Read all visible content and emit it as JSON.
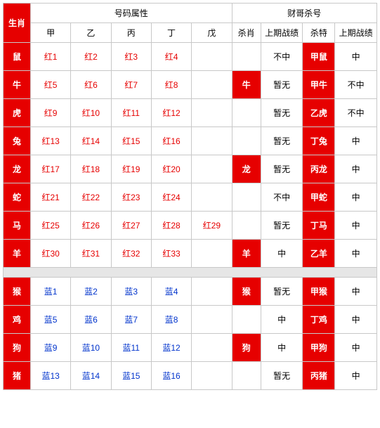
{
  "colors": {
    "red_bg": "#e60000",
    "red_text": "#e60000",
    "blue_text": "#0033cc",
    "black_text": "#000000",
    "border": "#c8c8c8",
    "gap_bg": "#e6e6e6",
    "white": "#ffffff"
  },
  "header": {
    "zodiac": "生肖",
    "num_group": "号码属性",
    "caige_group": "财哥杀号",
    "stems": [
      "甲",
      "乙",
      "丙",
      "丁",
      "戊"
    ],
    "sha_xiao": "杀肖",
    "last1": "上期战绩",
    "sha_te": "杀特",
    "last2": "上期战绩"
  },
  "rows": [
    {
      "zodiac": "鼠",
      "color": "red",
      "nums": [
        "红1",
        "红2",
        "红3",
        "红4",
        ""
      ],
      "sx": "",
      "sx_hl": false,
      "l1": "不中",
      "st": "甲鼠",
      "st_hl": true,
      "l2": "中"
    },
    {
      "zodiac": "牛",
      "color": "red",
      "nums": [
        "红5",
        "红6",
        "红7",
        "红8",
        ""
      ],
      "sx": "牛",
      "sx_hl": true,
      "l1": "暂无",
      "st": "甲牛",
      "st_hl": true,
      "l2": "不中"
    },
    {
      "zodiac": "虎",
      "color": "red",
      "nums": [
        "红9",
        "红10",
        "红11",
        "红12",
        ""
      ],
      "sx": "",
      "sx_hl": false,
      "l1": "暂无",
      "st": "乙虎",
      "st_hl": true,
      "l2": "不中"
    },
    {
      "zodiac": "兔",
      "color": "red",
      "nums": [
        "红13",
        "红14",
        "红15",
        "红16",
        ""
      ],
      "sx": "",
      "sx_hl": false,
      "l1": "暂无",
      "st": "丁兔",
      "st_hl": true,
      "l2": "中"
    },
    {
      "zodiac": "龙",
      "color": "red",
      "nums": [
        "红17",
        "红18",
        "红19",
        "红20",
        ""
      ],
      "sx": "龙",
      "sx_hl": true,
      "l1": "暂无",
      "st": "丙龙",
      "st_hl": true,
      "l2": "中"
    },
    {
      "zodiac": "蛇",
      "color": "red",
      "nums": [
        "红21",
        "红22",
        "红23",
        "红24",
        ""
      ],
      "sx": "",
      "sx_hl": false,
      "l1": "不中",
      "st": "甲蛇",
      "st_hl": true,
      "l2": "中"
    },
    {
      "zodiac": "马",
      "color": "red",
      "nums": [
        "红25",
        "红26",
        "红27",
        "红28",
        "红29"
      ],
      "sx": "",
      "sx_hl": false,
      "l1": "暂无",
      "st": "丁马",
      "st_hl": true,
      "l2": "中"
    },
    {
      "zodiac": "羊",
      "color": "red",
      "nums": [
        "红30",
        "红31",
        "红32",
        "红33",
        ""
      ],
      "sx": "羊",
      "sx_hl": true,
      "l1": "中",
      "st": "乙羊",
      "st_hl": true,
      "l2": "中"
    },
    {
      "gap": true
    },
    {
      "zodiac": "猴",
      "color": "blue",
      "nums": [
        "蓝1",
        "蓝2",
        "蓝3",
        "蓝4",
        ""
      ],
      "sx": "猴",
      "sx_hl": true,
      "l1": "暂无",
      "st": "甲猴",
      "st_hl": true,
      "l2": "中"
    },
    {
      "zodiac": "鸡",
      "color": "blue",
      "nums": [
        "蓝5",
        "蓝6",
        "蓝7",
        "蓝8",
        ""
      ],
      "sx": "",
      "sx_hl": false,
      "l1": "中",
      "st": "丁鸡",
      "st_hl": true,
      "l2": "中"
    },
    {
      "zodiac": "狗",
      "color": "blue",
      "nums": [
        "蓝9",
        "蓝10",
        "蓝11",
        "蓝12",
        ""
      ],
      "sx": "狗",
      "sx_hl": true,
      "l1": "中",
      "st": "甲狗",
      "st_hl": true,
      "l2": "中"
    },
    {
      "zodiac": "猪",
      "color": "blue",
      "nums": [
        "蓝13",
        "蓝14",
        "蓝15",
        "蓝16",
        ""
      ],
      "sx": "",
      "sx_hl": false,
      "l1": "暂无",
      "st": "丙猪",
      "st_hl": true,
      "l2": "中"
    }
  ]
}
